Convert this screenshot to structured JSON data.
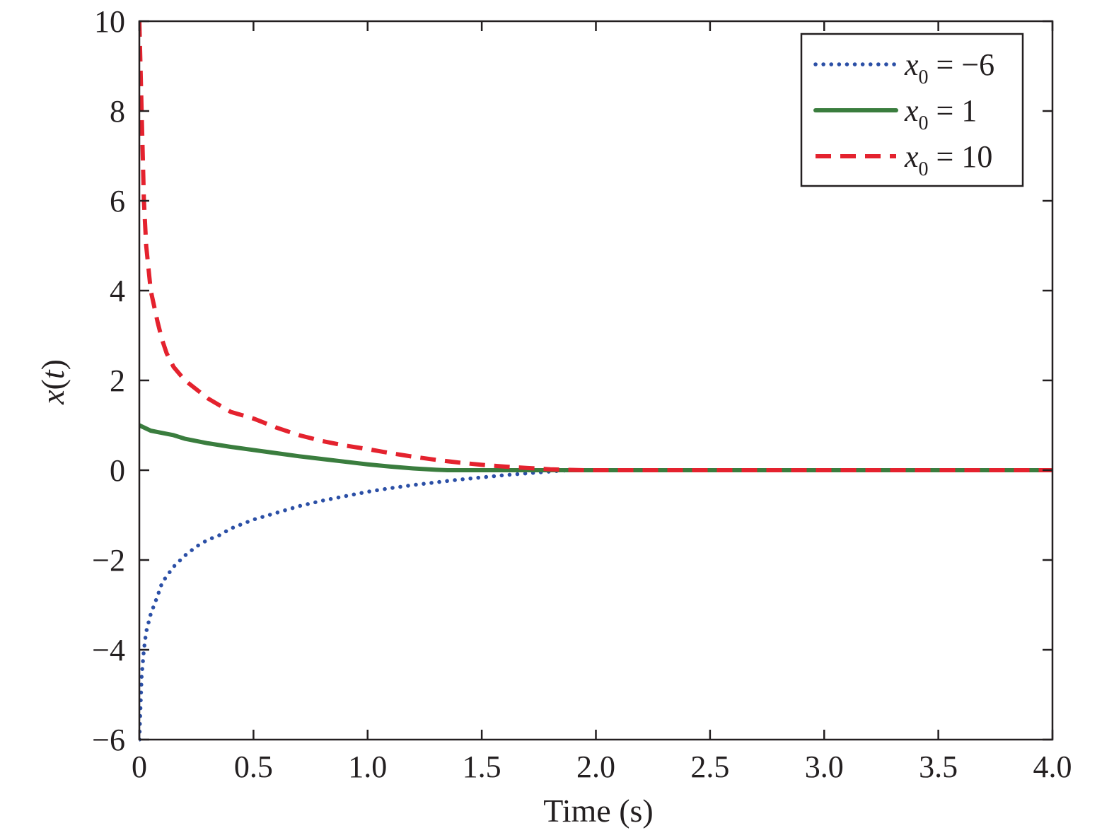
{
  "chart_data": {
    "type": "line",
    "title": "",
    "xlabel": "Time (s)",
    "ylabel": "x(t)",
    "ylabel_parts": {
      "var": "x",
      "open": "(",
      "arg": "t",
      "close": ")"
    },
    "xlim": [
      0,
      4.0
    ],
    "ylim": [
      -6,
      10
    ],
    "grid": false,
    "legend_position": "top-right",
    "x_ticks": [
      {
        "value": 0,
        "label": "0"
      },
      {
        "value": 0.5,
        "label": "0.5"
      },
      {
        "value": 1.0,
        "label": "1.0"
      },
      {
        "value": 1.5,
        "label": "1.5"
      },
      {
        "value": 2.0,
        "label": "2.0"
      },
      {
        "value": 2.5,
        "label": "2.5"
      },
      {
        "value": 3.0,
        "label": "3.0"
      },
      {
        "value": 3.5,
        "label": "3.5"
      },
      {
        "value": 4.0,
        "label": "4.0"
      }
    ],
    "y_ticks": [
      {
        "value": -6,
        "label": "−6"
      },
      {
        "value": -4,
        "label": "−4"
      },
      {
        "value": -2,
        "label": "−2"
      },
      {
        "value": 0,
        "label": "0"
      },
      {
        "value": 2,
        "label": "2"
      },
      {
        "value": 4,
        "label": "4"
      },
      {
        "value": 6,
        "label": "6"
      },
      {
        "value": 8,
        "label": "8"
      },
      {
        "value": 10,
        "label": "10"
      }
    ],
    "series": [
      {
        "name": "x0 = −6",
        "legend": {
          "var": "x",
          "sub": "0",
          "rest": " = −6"
        },
        "color": "#2b4fa6",
        "style": "dotted",
        "x": [
          0,
          0.005,
          0.01,
          0.02,
          0.03,
          0.05,
          0.08,
          0.1,
          0.15,
          0.2,
          0.25,
          0.3,
          0.35,
          0.4,
          0.5,
          0.6,
          0.7,
          0.8,
          0.9,
          1.0,
          1.1,
          1.2,
          1.3,
          1.4,
          1.5,
          1.6,
          1.7,
          1.8,
          1.85,
          1.9,
          2.0,
          2.5,
          3.0,
          3.5,
          4.0
        ],
        "y": [
          -6,
          -5.3,
          -4.6,
          -4.0,
          -3.6,
          -3.2,
          -2.8,
          -2.5,
          -2.15,
          -1.9,
          -1.7,
          -1.55,
          -1.45,
          -1.3,
          -1.1,
          -0.95,
          -0.8,
          -0.68,
          -0.58,
          -0.48,
          -0.4,
          -0.33,
          -0.27,
          -0.21,
          -0.16,
          -0.11,
          -0.07,
          -0.03,
          -0.01,
          0,
          0,
          0,
          0,
          0,
          0
        ]
      },
      {
        "name": "x0 = 1",
        "legend": {
          "var": "x",
          "sub": "0",
          "rest": " = 1"
        },
        "color": "#3a7d3e",
        "style": "solid",
        "x": [
          0,
          0.05,
          0.1,
          0.15,
          0.2,
          0.3,
          0.4,
          0.5,
          0.6,
          0.7,
          0.8,
          0.9,
          1.0,
          1.1,
          1.2,
          1.3,
          1.35,
          1.5,
          2.0,
          2.5,
          3.0,
          3.5,
          4.0
        ],
        "y": [
          1.0,
          0.88,
          0.83,
          0.78,
          0.7,
          0.6,
          0.52,
          0.45,
          0.38,
          0.31,
          0.25,
          0.19,
          0.13,
          0.08,
          0.04,
          0.01,
          0,
          0,
          0,
          0,
          0,
          0,
          0
        ]
      },
      {
        "name": "x0 = 10",
        "legend": {
          "var": "x",
          "sub": "0",
          "rest": " = 10"
        },
        "color": "#e4222e",
        "style": "dashed",
        "x": [
          0,
          0.005,
          0.01,
          0.015,
          0.02,
          0.03,
          0.05,
          0.08,
          0.1,
          0.12,
          0.15,
          0.2,
          0.25,
          0.3,
          0.35,
          0.4,
          0.5,
          0.6,
          0.7,
          0.8,
          0.9,
          1.0,
          1.1,
          1.2,
          1.3,
          1.4,
          1.5,
          1.6,
          1.7,
          1.8,
          1.9,
          1.95,
          2.0,
          2.5,
          3.0,
          3.5,
          4.0
        ],
        "y": [
          10,
          9.0,
          8.0,
          7.0,
          6.0,
          5.0,
          4.0,
          3.3,
          2.9,
          2.6,
          2.3,
          2.0,
          1.8,
          1.6,
          1.45,
          1.3,
          1.15,
          0.95,
          0.78,
          0.65,
          0.55,
          0.47,
          0.38,
          0.3,
          0.23,
          0.17,
          0.12,
          0.08,
          0.05,
          0.02,
          0.005,
          0,
          0,
          0,
          0,
          0,
          0
        ]
      }
    ]
  }
}
